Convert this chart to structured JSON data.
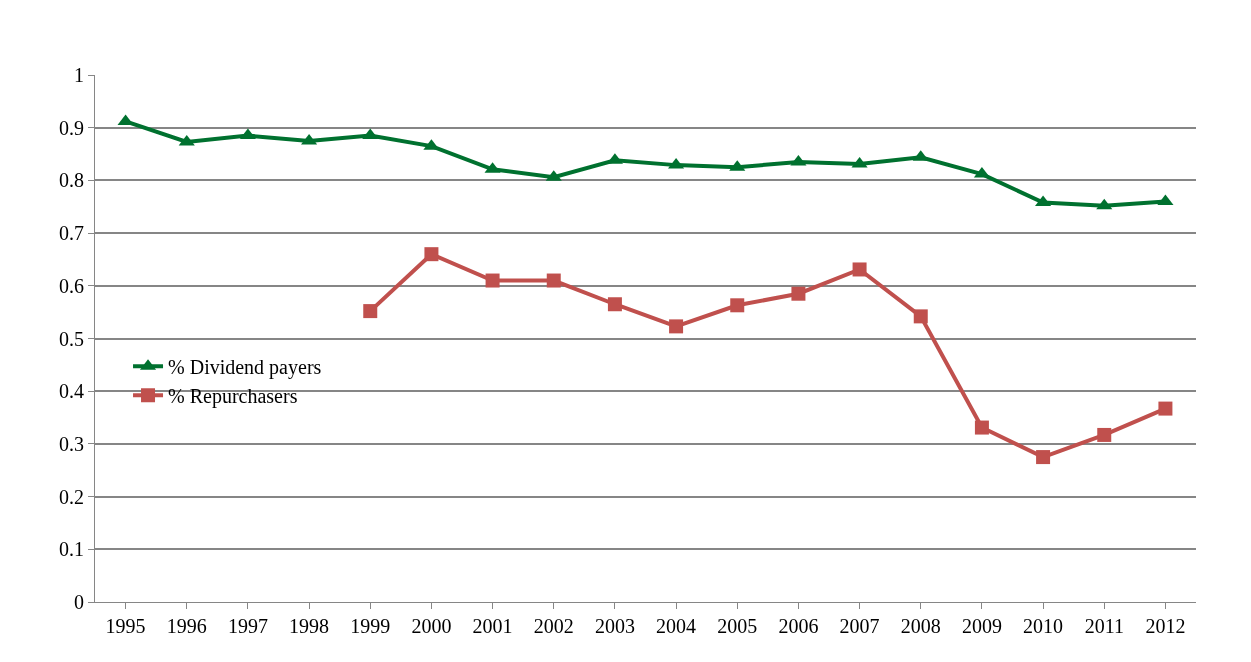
{
  "chart_data": {
    "type": "line",
    "categories": [
      "1995",
      "1996",
      "1997",
      "1998",
      "1999",
      "2000",
      "2001",
      "2002",
      "2003",
      "2004",
      "2005",
      "2006",
      "2007",
      "2008",
      "2009",
      "2010",
      "2011",
      "2012"
    ],
    "series": [
      {
        "name": "% Dividend payers",
        "color": "#00712f",
        "marker": "triangle",
        "values": [
          0.912,
          0.873,
          0.885,
          0.875,
          0.885,
          0.865,
          0.821,
          0.806,
          0.838,
          0.829,
          0.825,
          0.835,
          0.831,
          0.844,
          0.812,
          0.758,
          0.752,
          0.76
        ]
      },
      {
        "name": "% Repurchasers",
        "color": "#c0504d",
        "marker": "square",
        "values": [
          null,
          null,
          null,
          null,
          0.552,
          0.66,
          0.61,
          0.61,
          0.565,
          0.523,
          0.563,
          0.585,
          0.631,
          0.542,
          0.331,
          0.275,
          0.317,
          0.367
        ]
      }
    ],
    "ylim": [
      0,
      1
    ],
    "yticks": [
      0,
      0.1,
      0.2,
      0.3,
      0.4,
      0.5,
      0.6,
      0.7,
      0.8,
      0.9,
      1
    ],
    "grid": "y",
    "legend": "left",
    "line_style": "solid"
  }
}
